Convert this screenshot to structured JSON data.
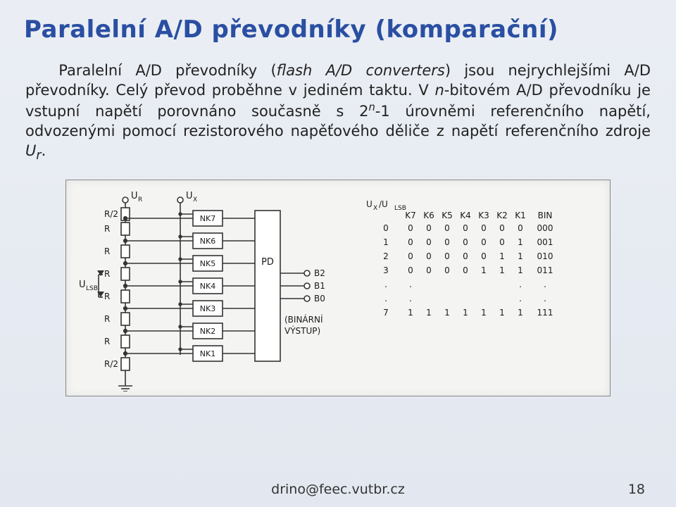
{
  "title": "Paralelní A/D převodníky (komparační)",
  "paragraph": {
    "p1a": "Paralelní A/D převodníky (",
    "p1b": "flash A/D converters",
    "p1c": ") jsou nejrychlejšími A/D převodníky. Celý převod proběhne v jediném taktu. V ",
    "p1d": "n",
    "p1e": "-bitovém A/D převodníku je vstupní napětí porovnáno současně s 2",
    "p1f": "n",
    "p1g": "-1 úrovněmi referenčního napětí, odvozenými pomocí rezistorového napěťového děliče z napětí referenčního zdroje ",
    "p1h": "U",
    "p1i": "r",
    "p1j": "."
  },
  "diagram": {
    "labels": {
      "UR": "U",
      "UR_sub": "R",
      "UX": "U",
      "UX_sub": "X",
      "ULSB": "U",
      "ULSB_sub": "LSB",
      "R2": "R/2",
      "R": "R",
      "NK": [
        "NK7",
        "NK6",
        "NK5",
        "NK4",
        "NK3",
        "NK2",
        "NK1"
      ],
      "PD": "PD",
      "B": [
        "B2",
        "B1",
        "B0"
      ],
      "binout1": "(BINÁRNÍ",
      "binout2": "VÝSTUP)",
      "ratio": "U",
      "ratio_x": "X",
      "ratio_slash": " /U",
      "ratio_lsb": "LSB"
    },
    "truth": {
      "headers": [
        "",
        "K7",
        "K6",
        "K5",
        "K4",
        "K3",
        "K2",
        "K1",
        "BIN"
      ],
      "rows": [
        [
          "0",
          "0",
          "0",
          "0",
          "0",
          "0",
          "0",
          "0",
          "000"
        ],
        [
          "1",
          "0",
          "0",
          "0",
          "0",
          "0",
          "0",
          "1",
          "001"
        ],
        [
          "2",
          "0",
          "0",
          "0",
          "0",
          "0",
          "1",
          "1",
          "010"
        ],
        [
          "3",
          "0",
          "0",
          "0",
          "0",
          "1",
          "1",
          "1",
          "011"
        ],
        [
          ".",
          ".",
          "",
          "",
          "",
          "",
          "",
          ".",
          "."
        ],
        [
          ".",
          ".",
          "",
          "",
          "",
          "",
          "",
          ".",
          "."
        ],
        [
          "7",
          "1",
          "1",
          "1",
          "1",
          "1",
          "1",
          "1",
          "111"
        ]
      ]
    },
    "colors": {
      "line": "#343434",
      "fill": "#f4f4f2",
      "text": "#1a1a1a"
    }
  },
  "footer": "drino@feec.vutbr.cz",
  "pagenum": "18"
}
